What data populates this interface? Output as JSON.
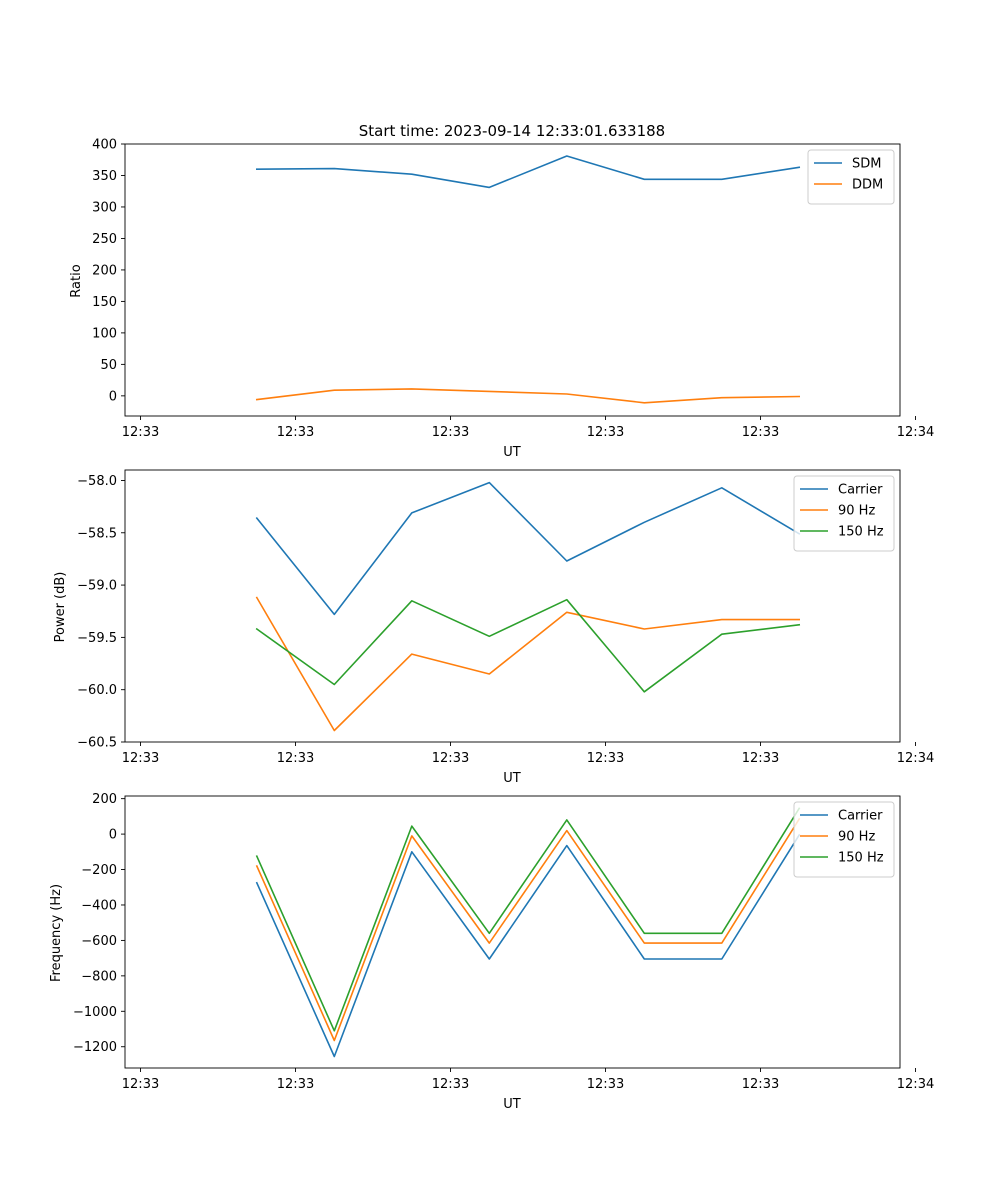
{
  "figure_title": "Start time: 2023-09-14 12:33:01.633188",
  "chart_data": [
    {
      "type": "line",
      "xlabel": "UT",
      "ylabel": "Ratio",
      "xlim": [
        -1.7,
        8.3
      ],
      "ylim": [
        -32,
        400
      ],
      "yticks": [
        0,
        50,
        100,
        150,
        200,
        250,
        300,
        350,
        400
      ],
      "ytick_labels": [
        "0",
        "50",
        "100",
        "150",
        "200",
        "250",
        "300",
        "350",
        "400"
      ],
      "xticks": [
        -1.5,
        0.5,
        2.5,
        4.5,
        6.5,
        8.5
      ],
      "xtick_labels": [
        "12:33",
        "12:33",
        "12:33",
        "12:33",
        "12:33",
        "12:34"
      ],
      "x": [
        0,
        1,
        2,
        3,
        4,
        5,
        6,
        7
      ],
      "legend_loc": "top-right",
      "series": [
        {
          "name": "SDM",
          "color": "#1f77b4",
          "values": [
            360,
            361,
            352,
            331,
            381,
            344,
            344,
            363
          ]
        },
        {
          "name": "DDM",
          "color": "#ff7f0e",
          "values": [
            -6,
            9,
            11,
            7,
            3,
            -11,
            -3,
            -1
          ]
        }
      ]
    },
    {
      "type": "line",
      "xlabel": "UT",
      "ylabel": "Power (dB)",
      "xlim": [
        -1.7,
        8.3
      ],
      "ylim": [
        -60.5,
        -57.9
      ],
      "yticks": [
        -60.5,
        -60.0,
        -59.5,
        -59.0,
        -58.5,
        -58.0
      ],
      "ytick_labels": [
        "−60.5",
        "−60.0",
        "−59.5",
        "−59.0",
        "−58.5",
        "−58.0"
      ],
      "xticks": [
        -1.5,
        0.5,
        2.5,
        4.5,
        6.5,
        8.5
      ],
      "xtick_labels": [
        "12:33",
        "12:33",
        "12:33",
        "12:33",
        "12:33",
        "12:34"
      ],
      "x": [
        0,
        1,
        2,
        3,
        4,
        5,
        6,
        7
      ],
      "legend_loc": "top-right",
      "series": [
        {
          "name": "Carrier",
          "color": "#1f77b4",
          "values": [
            -58.36,
            -59.28,
            -58.31,
            -58.02,
            -58.77,
            -58.4,
            -58.07,
            -58.51
          ]
        },
        {
          "name": "90 Hz",
          "color": "#ff7f0e",
          "values": [
            -59.12,
            -60.39,
            -59.66,
            -59.85,
            -59.26,
            -59.42,
            -59.33,
            -59.33
          ]
        },
        {
          "name": "150 Hz",
          "color": "#2ca02c",
          "values": [
            -59.42,
            -59.95,
            -59.15,
            -59.49,
            -59.14,
            -60.02,
            -59.47,
            -59.38
          ]
        }
      ]
    },
    {
      "type": "line",
      "xlabel": "UT",
      "ylabel": "Frequency (Hz)",
      "xlim": [
        -1.7,
        8.3
      ],
      "ylim": [
        -1320,
        215
      ],
      "yticks": [
        -1200,
        -1000,
        -800,
        -600,
        -400,
        -200,
        0,
        200
      ],
      "ytick_labels": [
        "−1200",
        "−1000",
        "−800",
        "−600",
        "−400",
        "−200",
        "0",
        "200"
      ],
      "xticks": [
        -1.5,
        0.5,
        2.5,
        4.5,
        6.5,
        8.5
      ],
      "xtick_labels": [
        "12:33",
        "12:33",
        "12:33",
        "12:33",
        "12:33",
        "12:34"
      ],
      "x": [
        0,
        1,
        2,
        3,
        4,
        5,
        6,
        7
      ],
      "legend_loc": "top-right",
      "series": [
        {
          "name": "Carrier",
          "color": "#1f77b4",
          "values": [
            -275,
            -1255,
            -100,
            -705,
            -65,
            -705,
            -705,
            -5
          ]
        },
        {
          "name": "90 Hz",
          "color": "#ff7f0e",
          "values": [
            -180,
            -1165,
            -10,
            -615,
            20,
            -615,
            -615,
            85
          ]
        },
        {
          "name": "150 Hz",
          "color": "#2ca02c",
          "values": [
            -125,
            -1110,
            45,
            -560,
            80,
            -560,
            -560,
            145
          ]
        }
      ]
    }
  ]
}
